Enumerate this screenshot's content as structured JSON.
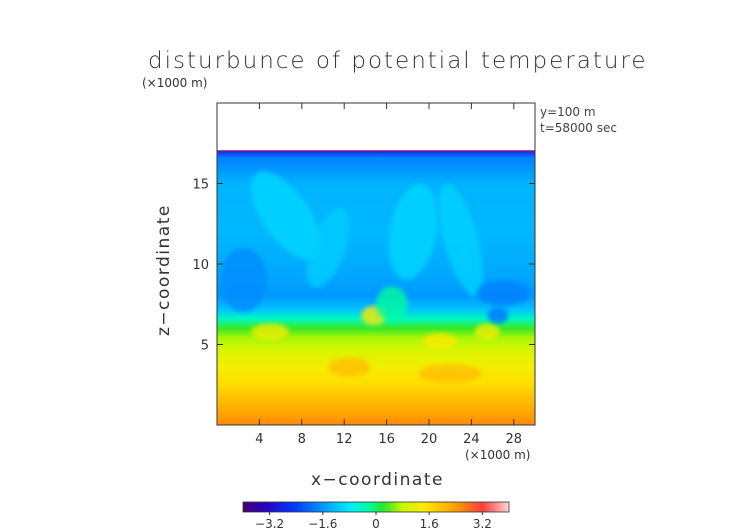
{
  "chart_data": {
    "type": "heatmap",
    "title": "disturbunce of potential temperature",
    "xlabel": "x−coordinate",
    "ylabel": "z−coordinate",
    "x_unit": "(×1000 m)",
    "y_unit": "(×1000 m)",
    "xlim": [
      0,
      30
    ],
    "ylim": [
      0,
      20
    ],
    "x_ticks": [
      4,
      8,
      12,
      16,
      20,
      24,
      28
    ],
    "x_tick_labels": [
      "4",
      "8",
      "12",
      "16",
      "20",
      "24",
      "28"
    ],
    "y_ticks": [
      5,
      10,
      15
    ],
    "y_tick_labels": [
      "5",
      "10",
      "15"
    ],
    "annotations": [
      "y=100 m",
      "t=58000 sec"
    ],
    "data_top_z": 17.0,
    "colorbar": {
      "range": [
        -4,
        4
      ],
      "ticks": [
        -3.2,
        -1.6,
        0,
        1.6,
        3.2
      ],
      "tick_labels": [
        "−3.2",
        "−1.6",
        "0",
        "1.6",
        "3.2"
      ]
    },
    "profile": [
      {
        "z": 0.0,
        "value": 2.6
      },
      {
        "z": 0.8,
        "value": 2.3
      },
      {
        "z": 1.6,
        "value": 2.0
      },
      {
        "z": 2.6,
        "value": 1.6
      },
      {
        "z": 3.6,
        "value": 1.3
      },
      {
        "z": 4.6,
        "value": 1.0
      },
      {
        "z": 5.4,
        "value": 0.7
      },
      {
        "z": 6.0,
        "value": 0.3
      },
      {
        "z": 6.6,
        "value": -0.4
      },
      {
        "z": 7.2,
        "value": -1.2
      },
      {
        "z": 8.0,
        "value": -1.6
      },
      {
        "z": 9.5,
        "value": -1.45
      },
      {
        "z": 12.0,
        "value": -1.3
      },
      {
        "z": 15.0,
        "value": -1.35
      },
      {
        "z": 16.6,
        "value": -1.8
      },
      {
        "z": 17.0,
        "value": -2.6
      }
    ],
    "grid": false,
    "colormap": "rainbow"
  }
}
